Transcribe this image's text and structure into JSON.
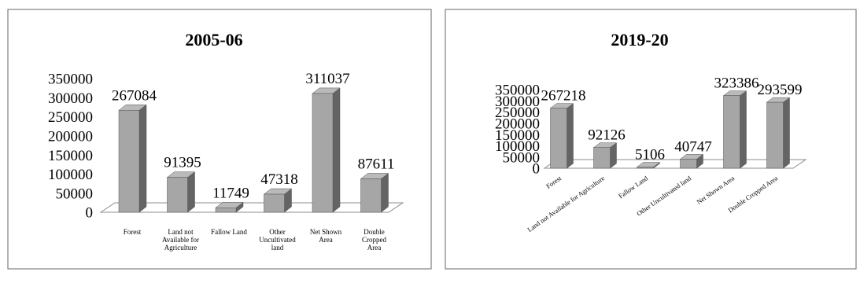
{
  "chart_data": [
    {
      "type": "bar",
      "title": "2005-06",
      "categories": [
        "Forest",
        "Land not Available for Agriculture",
        "Fallow Land",
        "Other Uncultivated land",
        "Net Shown Area",
        "Double Cropped Area"
      ],
      "values": [
        267084,
        91395,
        11749,
        47318,
        311037,
        87611
      ],
      "ylim": [
        0,
        350000
      ],
      "yticks": [
        "0",
        "50000",
        "100000",
        "150000",
        "200000",
        "250000",
        "300000",
        "350000"
      ],
      "grid": false,
      "legend": "none",
      "bar_color": "#a6a6a6"
    },
    {
      "type": "bar",
      "title": "2019-20",
      "categories": [
        "Forest",
        "Land not Available for Agriculture",
        "Fallow Land",
        "Other Uncultivated land",
        "Net Shown Area",
        "Double Cropped Area"
      ],
      "values": [
        267218,
        92126,
        5106,
        40747,
        323386,
        293599
      ],
      "ylim": [
        0,
        350000
      ],
      "yticks": [
        "0",
        "50000",
        "100000",
        "150000",
        "200000",
        "250000",
        "300000",
        "350000"
      ],
      "grid": false,
      "legend": "none",
      "bar_color": "#a6a6a6"
    }
  ]
}
